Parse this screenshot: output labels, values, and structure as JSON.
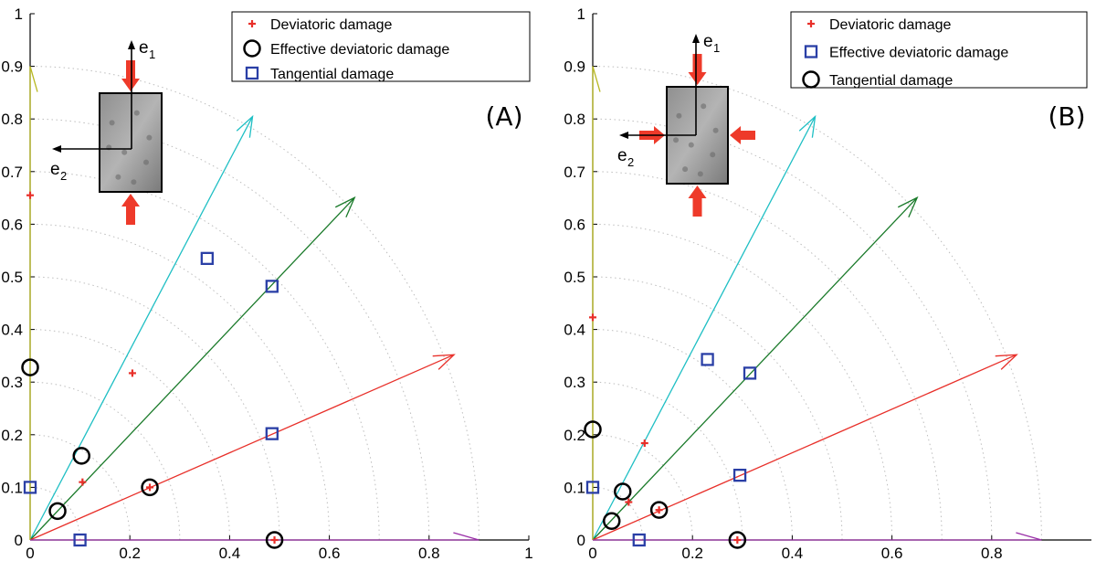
{
  "chart_data": [
    {
      "type": "scatter",
      "panel_label": "(A)",
      "xlim": [
        0,
        1
      ],
      "ylim": [
        0,
        1
      ],
      "xticks": [
        "0",
        "0.2",
        "0.4",
        "0.6",
        "0.8",
        "1"
      ],
      "yticks": [
        "0",
        "0.1",
        "0.2",
        "0.3",
        "0.4",
        "0.5",
        "0.6",
        "0.7",
        "0.8",
        "0.9",
        "1"
      ],
      "grid": "dotted circular arcs",
      "legend": {
        "position": "top-right",
        "entries": [
          {
            "label": "Deviatoric damage",
            "marker": "plus",
            "color": "#e8302a"
          },
          {
            "label": "Effective deviatoric damage",
            "marker": "circle",
            "color": "#000000"
          },
          {
            "label": "Tangential damage",
            "marker": "square",
            "color": "#2a3fa6"
          }
        ]
      },
      "basis": {
        "e1": "e",
        "e1_sub": "1",
        "e2": "e",
        "e2_sub": "2"
      },
      "arrows": [
        {
          "color": "#1fbfc4",
          "angle_deg": 61
        },
        {
          "color": "#1a7a2a",
          "angle_deg": 45
        },
        {
          "color": "#e8302a",
          "angle_deg": 22.5
        },
        {
          "color": "#b8b820",
          "angle_deg": 90,
          "length": 0.9
        },
        {
          "color": "#9a30a8",
          "angle_deg": 0,
          "length": 0.9
        }
      ],
      "series": [
        {
          "name": "Deviatoric damage",
          "marker": "plus",
          "color": "#e8302a",
          "points": [
            [
              0,
              0.655
            ],
            [
              0.205,
              0.317
            ],
            [
              0.105,
              0.11
            ],
            [
              0.24,
              0.1
            ],
            [
              0.49,
              0.0
            ]
          ]
        },
        {
          "name": "Effective deviatoric damage",
          "marker": "circle",
          "color": "#000000",
          "points": [
            [
              0,
              0.328
            ],
            [
              0.103,
              0.16
            ],
            [
              0.055,
              0.055
            ],
            [
              0.24,
              0.1
            ],
            [
              0.49,
              0.0
            ]
          ]
        },
        {
          "name": "Tangential damage",
          "marker": "square",
          "color": "#2a3fa6",
          "points": [
            [
              0.355,
              0.535
            ],
            [
              0.485,
              0.482
            ],
            [
              0.485,
              0.202
            ],
            [
              0,
              0.1
            ],
            [
              0.1,
              0.0
            ]
          ]
        }
      ]
    },
    {
      "type": "scatter",
      "panel_label": "(B)",
      "xlim": [
        0,
        1
      ],
      "ylim": [
        0,
        1
      ],
      "xticks": [
        "0",
        "0.2",
        "0.4",
        "0.6",
        "0.8"
      ],
      "yticks": [
        "0",
        "0.1",
        "0.2",
        "0.3",
        "0.4",
        "0.5",
        "0.6",
        "0.7",
        "0.8",
        "0.9",
        "1"
      ],
      "grid": "dotted circular arcs",
      "legend": {
        "position": "top-right",
        "entries": [
          {
            "label": "Deviatoric damage",
            "marker": "plus",
            "color": "#e8302a"
          },
          {
            "label": "Effective deviatoric damage",
            "marker": "square",
            "color": "#2a3fa6"
          },
          {
            "label": "Tangential damage",
            "marker": "circle",
            "color": "#000000"
          }
        ]
      },
      "basis": {
        "e1": "e",
        "e1_sub": "1",
        "e2": "e",
        "e2_sub": "2"
      },
      "arrows": [
        {
          "color": "#1fbfc4",
          "angle_deg": 61
        },
        {
          "color": "#1a7a2a",
          "angle_deg": 45
        },
        {
          "color": "#e8302a",
          "angle_deg": 22.5
        },
        {
          "color": "#b8b820",
          "angle_deg": 90,
          "length": 0.9
        },
        {
          "color": "#9a30a8",
          "angle_deg": 0,
          "length": 0.9
        }
      ],
      "series": [
        {
          "name": "Deviatoric damage",
          "marker": "plus",
          "color": "#e8302a",
          "points": [
            [
              0,
              0.423
            ],
            [
              0.104,
              0.184
            ],
            [
              0.072,
              0.072
            ],
            [
              0.133,
              0.057
            ],
            [
              0.29,
              0.0
            ]
          ]
        },
        {
          "name": "Effective deviatoric damage",
          "marker": "square",
          "color": "#2a3fa6",
          "points": [
            [
              0.23,
              0.343
            ],
            [
              0.315,
              0.317
            ],
            [
              0.295,
              0.123
            ],
            [
              0,
              0.1
            ],
            [
              0.093,
              0.0
            ]
          ]
        },
        {
          "name": "Tangential damage",
          "marker": "circle",
          "color": "#000000",
          "points": [
            [
              0,
              0.21
            ],
            [
              0.06,
              0.092
            ],
            [
              0.038,
              0.036
            ],
            [
              0.133,
              0.057
            ],
            [
              0.29,
              0.0
            ]
          ]
        }
      ]
    }
  ]
}
